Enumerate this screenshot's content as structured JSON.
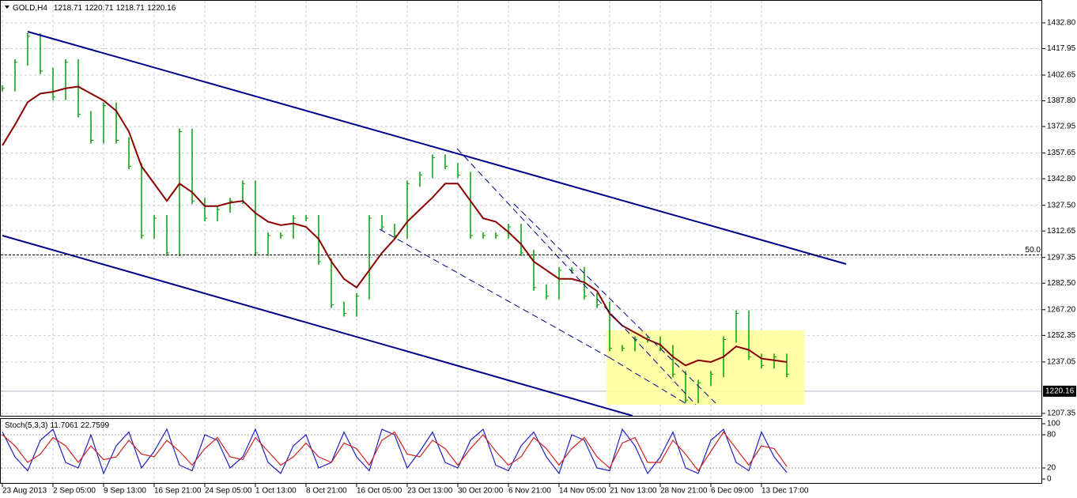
{
  "chart_data": [
    {
      "type": "bars",
      "title": "GOLD,H4",
      "ohlc": [
        1218.71,
        1220.71,
        1218.71,
        1220.16
      ],
      "ylim": [
        1205.5,
        1446.0
      ],
      "yticks": [
        {
          "value": 1432.8,
          "label": "1432.80"
        },
        1417.95,
        1402.65,
        {
          "value": 1387.8,
          "label": "1387.80"
        },
        1372.95,
        1357.65,
        {
          "value": 1342.8,
          "label": "1342.80"
        },
        {
          "value": 1327.5,
          "label": "1327.50"
        },
        1312.65,
        1297.35,
        {
          "value": 1282.5,
          "label": "1282.50"
        },
        {
          "value": 1267.2,
          "label": "1267.20"
        },
        1252.35,
        1237.05,
        1207.35
      ],
      "date_labels": [
        "23 Aug 2013",
        "2 Sep 05:00",
        "9 Sep 13:00",
        "16 Sep 21:00",
        "24 Sep 05:00",
        "1 Oct 13:00",
        "8 Oct 21:00",
        "16 Oct 05:00",
        "23 Oct 13:00",
        "30 Oct 20:00",
        "6 Nov 21:00",
        "14 Nov 05:00",
        "21 Nov 13:00",
        "28 Nov 21:00",
        "6 Dec 09:00",
        "13 Dec 17:00"
      ],
      "current_price": 1220.16,
      "level": {
        "label": "50.0",
        "value": 1298.8
      },
      "grid": true,
      "series": [
        {
          "name": "GOLD",
          "color": "#00a000",
          "values": [
            1395,
            1410,
            1425,
            1405,
            1390,
            1410,
            1380,
            1365,
            1385,
            1365,
            1350,
            1310,
            1320,
            1300,
            1370,
            1330,
            1320,
            1325,
            1330,
            1340,
            1300,
            1310,
            1310,
            1320,
            1320,
            1295,
            1270,
            1265,
            1275,
            1320,
            1315,
            1310,
            1340,
            1345,
            1355,
            1350,
            1345,
            1310,
            1310,
            1310,
            1315,
            1300,
            1280,
            1275,
            1290,
            1290,
            1275,
            1270,
            1245,
            1245,
            1250,
            1250,
            1245,
            1230,
            1215,
            1225,
            1230,
            1250,
            1265,
            1240,
            1235,
            1240,
            1230
          ]
        },
        {
          "name": "MA",
          "color": "#8b0000",
          "values": [
            1362,
            1374,
            1387,
            1392,
            1393,
            1395,
            1396,
            1392,
            1388,
            1382,
            1370,
            1350,
            1340,
            1330,
            1340,
            1335,
            1327,
            1327,
            1329,
            1330,
            1323,
            1318,
            1316,
            1317,
            1315,
            1308,
            1295,
            1285,
            1280,
            1290,
            1300,
            1308,
            1318,
            1325,
            1332,
            1340,
            1340,
            1330,
            1320,
            1318,
            1312,
            1305,
            1295,
            1290,
            1285,
            1285,
            1283,
            1278,
            1265,
            1258,
            1254,
            1250,
            1247,
            1240,
            1235,
            1238,
            1237,
            1240,
            1246,
            1244,
            1239,
            1238,
            1237
          ]
        }
      ]
    },
    {
      "type": "line",
      "title": "Stoch(5,3,3)",
      "ylim": [
        -8.6,
        108.6
      ],
      "yticks": [
        0,
        20,
        80,
        100
      ],
      "levels": [
        20,
        80
      ],
      "series": [
        {
          "name": "Main",
          "color": "#2020c0",
          "values": [
            85,
            40,
            15,
            70,
            90,
            30,
            20,
            80,
            10,
            60,
            85,
            20,
            50,
            90,
            25,
            15,
            80,
            70,
            20,
            40,
            90,
            30,
            10,
            60,
            80,
            20,
            30,
            85,
            40,
            15,
            90,
            80,
            20,
            50,
            85,
            30,
            20,
            70,
            90,
            25,
            15,
            60,
            85,
            40,
            10,
            80,
            70,
            20,
            15,
            90,
            60,
            10,
            40,
            85,
            20,
            10,
            70,
            90,
            30,
            15,
            85,
            40,
            11.7061
          ]
        },
        {
          "name": "Signal",
          "color": "#d02020",
          "values": [
            80,
            60,
            30,
            45,
            75,
            60,
            30,
            60,
            35,
            40,
            70,
            45,
            40,
            70,
            50,
            25,
            55,
            75,
            40,
            35,
            75,
            50,
            25,
            40,
            65,
            40,
            30,
            65,
            55,
            25,
            70,
            85,
            45,
            40,
            70,
            55,
            25,
            55,
            80,
            50,
            25,
            40,
            75,
            55,
            25,
            55,
            75,
            40,
            20,
            65,
            75,
            30,
            30,
            70,
            45,
            15,
            50,
            85,
            55,
            25,
            60,
            55,
            22.7599
          ]
        }
      ]
    }
  ]
}
